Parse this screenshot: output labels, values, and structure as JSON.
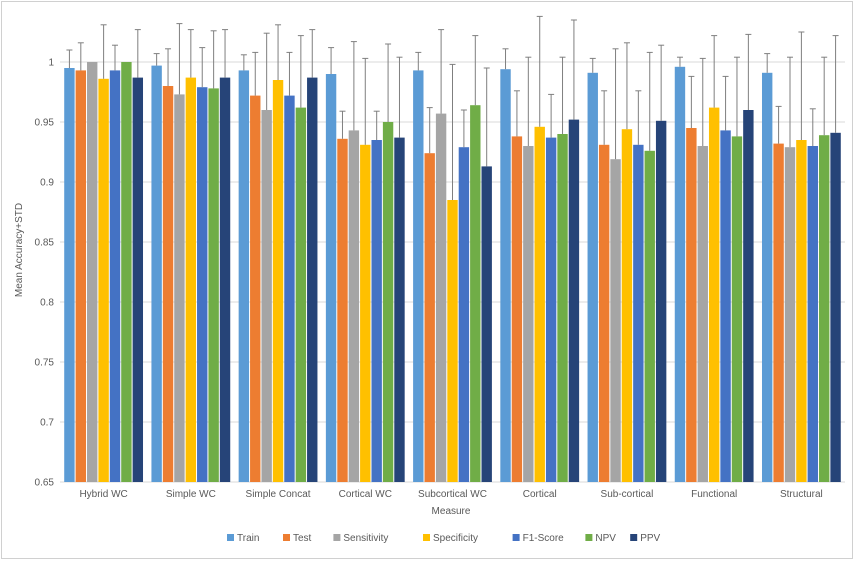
{
  "chart_data": {
    "type": "bar",
    "title": "",
    "xlabel": "Measure",
    "ylabel": "Mean Accuracy+STD",
    "ylim": [
      0.65,
      1.0
    ],
    "yticks": [
      "0.65",
      "0.7",
      "0.75",
      "0.8",
      "0.85",
      "0.9",
      "0.95",
      "1"
    ],
    "grid": true,
    "legend_position": "bottom",
    "categories": [
      "Hybrid WC",
      "Simple WC",
      "Simple Concat",
      "Cortical WC",
      "Subcortical WC",
      "Cortical",
      "Sub-cortical",
      "Functional",
      "Structural"
    ],
    "series": [
      {
        "name": "Train",
        "color": "#5B9BD5",
        "values": [
          0.995,
          0.997,
          0.993,
          0.99,
          0.993,
          0.994,
          0.991,
          0.996,
          0.991
        ],
        "errors": [
          0.015,
          0.01,
          0.013,
          0.022,
          0.015,
          0.017,
          0.012,
          0.008,
          0.016
        ]
      },
      {
        "name": "Test",
        "color": "#ED7D31",
        "values": [
          0.993,
          0.98,
          0.972,
          0.936,
          0.924,
          0.938,
          0.931,
          0.945,
          0.932
        ],
        "errors": [
          0.023,
          0.031,
          0.036,
          0.023,
          0.038,
          0.038,
          0.045,
          0.043,
          0.031
        ]
      },
      {
        "name": "Sensitivity",
        "color": "#A5A5A5",
        "values": [
          1.0,
          0.973,
          0.96,
          0.943,
          0.957,
          0.93,
          0.919,
          0.93,
          0.929
        ],
        "errors": [
          0.0,
          0.059,
          0.064,
          0.074,
          0.07,
          0.074,
          0.092,
          0.073,
          0.075
        ]
      },
      {
        "name": "Specificity",
        "color": "#FFC000",
        "values": [
          0.986,
          0.987,
          0.985,
          0.931,
          0.885,
          0.946,
          0.944,
          0.962,
          0.935
        ],
        "errors": [
          0.045,
          0.04,
          0.046,
          0.072,
          0.113,
          0.092,
          0.072,
          0.06,
          0.09
        ]
      },
      {
        "name": "F1-Score",
        "color": "#4472C4",
        "values": [
          0.993,
          0.979,
          0.972,
          0.935,
          0.929,
          0.937,
          0.931,
          0.943,
          0.93
        ],
        "errors": [
          0.021,
          0.033,
          0.036,
          0.024,
          0.031,
          0.036,
          0.045,
          0.045,
          0.031
        ]
      },
      {
        "name": "NPV",
        "color": "#70AD47",
        "values": [
          1.0,
          0.978,
          0.962,
          0.95,
          0.964,
          0.94,
          0.926,
          0.938,
          0.939
        ],
        "errors": [
          0.0,
          0.048,
          0.06,
          0.065,
          0.058,
          0.064,
          0.082,
          0.066,
          0.065
        ]
      },
      {
        "name": "PPV",
        "color": "#264478",
        "values": [
          0.987,
          0.987,
          0.987,
          0.937,
          0.913,
          0.952,
          0.951,
          0.96,
          0.941
        ],
        "errors": [
          0.04,
          0.04,
          0.04,
          0.067,
          0.082,
          0.083,
          0.063,
          0.063,
          0.081
        ]
      }
    ]
  }
}
